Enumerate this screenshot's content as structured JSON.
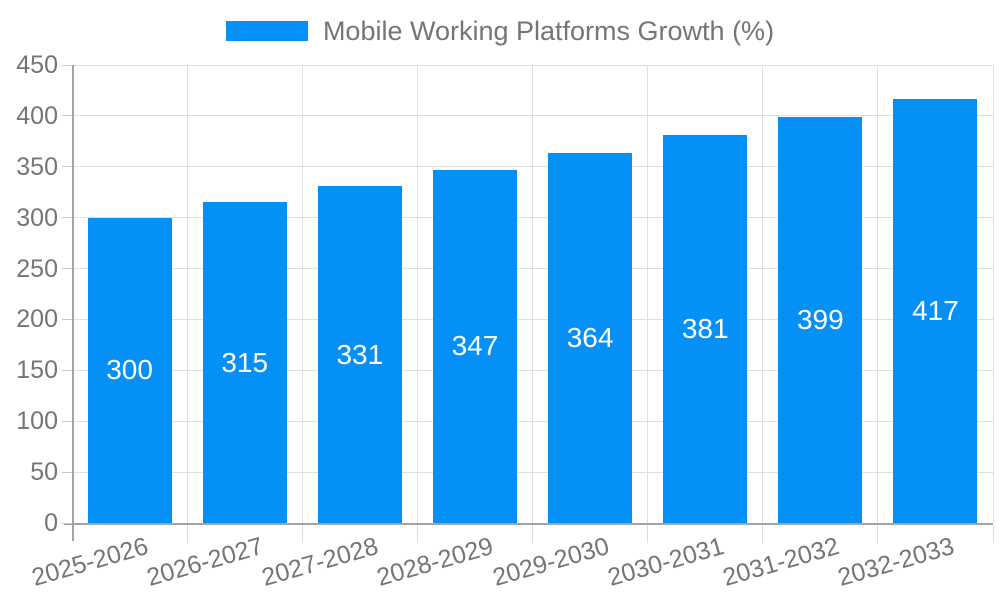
{
  "legend": {
    "label": "Mobile Working Platforms Growth (%)"
  },
  "colors": {
    "bar": "#0590f8",
    "grid": "#e0e0e0",
    "axis": "#a3a3a3",
    "tick_text": "#757575",
    "bar_label_text": "#ffffff",
    "background": "#ffffff"
  },
  "chart_data": {
    "type": "bar",
    "title": "Mobile Working Platforms Growth (%)",
    "categories": [
      "2025-2026",
      "2026-2027",
      "2027-2028",
      "2028-2029",
      "2029-2030",
      "2030-2031",
      "2031-2032",
      "2032-2033"
    ],
    "values": [
      300,
      315,
      331,
      347,
      364,
      381,
      399,
      417
    ],
    "xlabel": "",
    "ylabel": "",
    "ylim": [
      0,
      450
    ],
    "ytick_step": 50,
    "yticks": [
      0,
      50,
      100,
      150,
      200,
      250,
      300,
      350,
      400,
      450
    ],
    "grid": true,
    "legend_position": "top-center",
    "bar_value_labels": true,
    "xtick_rotation_deg": -16
  }
}
